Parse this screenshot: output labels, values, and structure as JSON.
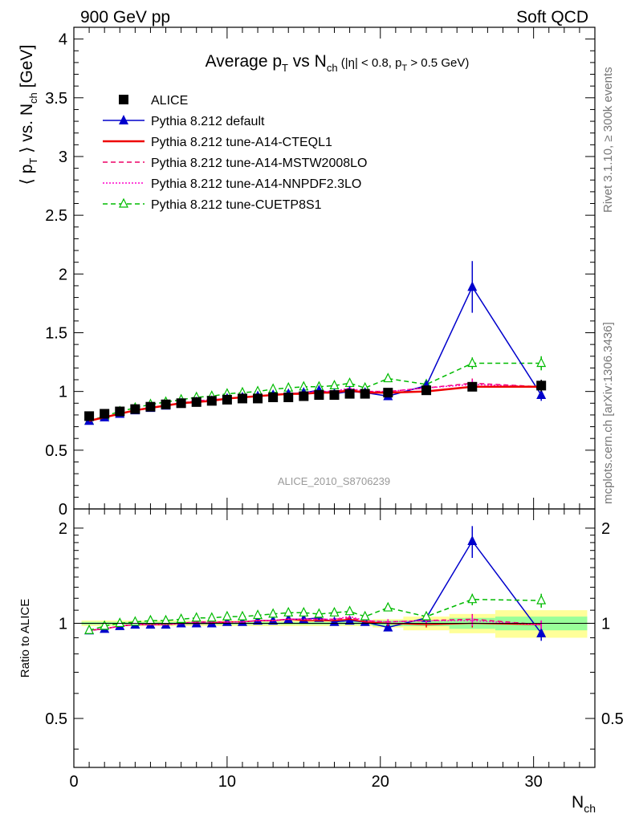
{
  "header": {
    "left": "900 GeV pp",
    "right": "Soft QCD",
    "side_top": "Rivet 3.1.10, ≥ 300k events",
    "side_bottom": "mcplots.cern.ch [arXiv:1306.3436]",
    "analysis_id": "ALICE_2010_S8706239"
  },
  "chart_data": [
    {
      "type": "line",
      "title": "Average p_T vs N_ch (|η| < 0.8, p_T > 0.5 GeV)",
      "title_parts": {
        "main": "Average p",
        "sub1": "T",
        "mid": " vs N",
        "sub2": "ch",
        "small": " (|η| < 0.8, p",
        "sub3": "T",
        "small_end": " > 0.5 GeV)"
      },
      "xlabel": "N_ch",
      "ylabel": "⟨ p_T ⟩ vs. N_ch [GeV]",
      "ylabel_parts": {
        "a": "⟨ p",
        "sub1": "T",
        "b": " ⟩ vs. N",
        "sub2": "ch",
        "c": " [GeV]"
      },
      "xlim": [
        0,
        34
      ],
      "ylim": [
        0,
        4.1
      ],
      "yticks": [
        "0",
        "0.5",
        "1",
        "1.5",
        "2",
        "2.5",
        "3",
        "3.5",
        "4"
      ],
      "xticks": [
        "0",
        "10",
        "20",
        "30"
      ],
      "legend_position": "top-left",
      "x": [
        1,
        2,
        3,
        4,
        5,
        6,
        7,
        8,
        9,
        10,
        11,
        12,
        13,
        14,
        15,
        16,
        17,
        18,
        19,
        20.5,
        23,
        26,
        30.5
      ],
      "series": [
        {
          "name": "ALICE",
          "color": "#000000",
          "marker": "square",
          "values": [
            0.79,
            0.81,
            0.83,
            0.85,
            0.87,
            0.89,
            0.9,
            0.91,
            0.92,
            0.93,
            0.94,
            0.94,
            0.95,
            0.95,
            0.96,
            0.97,
            0.97,
            0.98,
            0.98,
            0.99,
            1.01,
            1.04,
            1.05
          ],
          "errors": [
            0.01,
            0.01,
            0.01,
            0.01,
            0.01,
            0.01,
            0.01,
            0.01,
            0.01,
            0.01,
            0.01,
            0.01,
            0.01,
            0.01,
            0.01,
            0.01,
            0.01,
            0.01,
            0.01,
            0.02,
            0.02,
            0.03,
            0.05
          ]
        },
        {
          "name": "Pythia 8.212 default",
          "color": "#0000cc",
          "marker": "triangle-filled",
          "dash": "solid",
          "values": [
            0.75,
            0.78,
            0.81,
            0.84,
            0.86,
            0.88,
            0.9,
            0.91,
            0.92,
            0.94,
            0.95,
            0.96,
            0.97,
            0.98,
            0.99,
            1.01,
            0.98,
            1.0,
            0.99,
            0.96,
            1.05,
            1.89,
            0.97
          ],
          "errors": [
            0,
            0,
            0,
            0,
            0,
            0,
            0,
            0,
            0,
            0,
            0,
            0,
            0,
            0,
            0,
            0,
            0,
            0,
            0,
            0.02,
            0.03,
            0.22,
            0.05
          ]
        },
        {
          "name": "Pythia 8.212 tune-A14-CTEQL1",
          "color": "#ee0000",
          "marker": "none",
          "dash": "solid",
          "values": [
            0.75,
            0.78,
            0.81,
            0.84,
            0.86,
            0.88,
            0.9,
            0.91,
            0.92,
            0.94,
            0.95,
            0.96,
            0.97,
            0.98,
            0.98,
            0.99,
            0.99,
            1.01,
            0.99,
            0.99,
            1.0,
            1.04,
            1.04
          ],
          "errors": [
            0,
            0,
            0,
            0,
            0,
            0,
            0,
            0,
            0,
            0,
            0,
            0,
            0,
            0,
            0,
            0,
            0,
            0,
            0,
            0.02,
            0.02,
            0.03,
            0.03
          ]
        },
        {
          "name": "Pythia 8.212 tune-A14-MSTW2008LO",
          "color": "#ee0066",
          "marker": "none",
          "dash": "dashed",
          "values": [
            0.75,
            0.78,
            0.81,
            0.84,
            0.86,
            0.88,
            0.9,
            0.92,
            0.93,
            0.94,
            0.95,
            0.96,
            0.97,
            0.98,
            0.99,
            1.0,
            1.0,
            1.02,
            1.0,
            1.0,
            1.03,
            1.07,
            1.04
          ],
          "errors": [
            0,
            0,
            0,
            0,
            0,
            0,
            0,
            0,
            0,
            0,
            0,
            0,
            0,
            0,
            0,
            0,
            0,
            0,
            0,
            0.02,
            0.02,
            0.04,
            0.03
          ]
        },
        {
          "name": "Pythia 8.212 tune-A14-NNPDF2.3LO",
          "color": "#ff00cc",
          "marker": "none",
          "dash": "dotted",
          "values": [
            0.75,
            0.78,
            0.81,
            0.84,
            0.86,
            0.88,
            0.9,
            0.92,
            0.93,
            0.94,
            0.95,
            0.96,
            0.97,
            0.98,
            0.99,
            1.0,
            1.0,
            1.03,
            1.0,
            1.0,
            1.03,
            1.06,
            1.04
          ],
          "errors": [
            0,
            0,
            0,
            0,
            0,
            0,
            0,
            0,
            0,
            0,
            0,
            0,
            0,
            0,
            0,
            0,
            0,
            0,
            0,
            0.02,
            0.02,
            0.04,
            0.03
          ]
        },
        {
          "name": "Pythia 8.212 tune-CUETP8S1",
          "color": "#00bb00",
          "marker": "triangle-open",
          "dash": "dashed",
          "values": [
            0.75,
            0.79,
            0.83,
            0.86,
            0.89,
            0.91,
            0.93,
            0.95,
            0.96,
            0.98,
            0.99,
            1.0,
            1.02,
            1.03,
            1.04,
            1.04,
            1.05,
            1.07,
            1.03,
            1.11,
            1.06,
            1.24,
            1.24
          ],
          "errors": [
            0,
            0,
            0,
            0,
            0,
            0,
            0,
            0,
            0,
            0,
            0,
            0,
            0,
            0,
            0,
            0,
            0,
            0,
            0,
            0.02,
            0.03,
            0.05,
            0.06
          ]
        }
      ]
    },
    {
      "type": "line",
      "title": "",
      "xlabel": "N_ch",
      "ylabel": "Ratio to ALICE",
      "ylim": [
        0.35,
        2.3
      ],
      "yticks": [
        "0.5",
        "1",
        "2"
      ],
      "xticks": [
        "0",
        "10",
        "20",
        "30"
      ],
      "reference_band": {
        "x_edges": [
          0.5,
          1.5,
          2.5,
          3.5,
          4.5,
          5.5,
          6.5,
          7.5,
          8.5,
          9.5,
          10.5,
          11.5,
          12.5,
          13.5,
          14.5,
          15.5,
          16.5,
          17.5,
          18.5,
          19.5,
          21.5,
          24.5,
          27.5,
          33.5
        ],
        "stat_half_width": [
          0.01,
          0.01,
          0.01,
          0.01,
          0.01,
          0.01,
          0.01,
          0.01,
          0.01,
          0.01,
          0.01,
          0.01,
          0.01,
          0.01,
          0.01,
          0.01,
          0.01,
          0.01,
          0.01,
          0.02,
          0.02,
          0.04,
          0.05
        ],
        "total_half_width": [
          0.02,
          0.02,
          0.02,
          0.02,
          0.02,
          0.02,
          0.02,
          0.02,
          0.02,
          0.02,
          0.02,
          0.02,
          0.02,
          0.02,
          0.02,
          0.02,
          0.02,
          0.02,
          0.02,
          0.03,
          0.05,
          0.07,
          0.1
        ]
      },
      "series_ratios": [
        {
          "name": "Pythia 8.212 default",
          "values": [
            0.95,
            0.96,
            0.98,
            0.99,
            0.99,
            0.99,
            1.0,
            1.0,
            1.0,
            1.01,
            1.01,
            1.02,
            1.02,
            1.03,
            1.03,
            1.04,
            1.01,
            1.02,
            1.01,
            0.97,
            1.04,
            1.82,
            0.93
          ],
          "errors": [
            0,
            0,
            0,
            0,
            0,
            0,
            0,
            0,
            0,
            0,
            0,
            0,
            0,
            0,
            0,
            0,
            0,
            0,
            0,
            0.02,
            0.03,
            0.21,
            0.05
          ]
        },
        {
          "name": "Pythia 8.212 tune-A14-CTEQL1",
          "values": [
            0.95,
            0.96,
            0.98,
            0.99,
            0.99,
            0.99,
            1.0,
            1.0,
            1.0,
            1.01,
            1.01,
            1.02,
            1.02,
            1.03,
            1.02,
            1.02,
            1.02,
            1.03,
            1.01,
            1.0,
            0.99,
            1.0,
            0.99
          ],
          "errors": [
            0,
            0,
            0,
            0,
            0,
            0,
            0,
            0,
            0,
            0,
            0,
            0,
            0,
            0,
            0,
            0,
            0,
            0,
            0,
            0.02,
            0.02,
            0.03,
            0.03
          ]
        },
        {
          "name": "Pythia 8.212 tune-A14-MSTW2008LO",
          "values": [
            0.95,
            0.96,
            0.98,
            0.99,
            0.99,
            0.99,
            1.0,
            1.01,
            1.01,
            1.01,
            1.01,
            1.02,
            1.02,
            1.03,
            1.03,
            1.03,
            1.03,
            1.04,
            1.02,
            1.01,
            1.02,
            1.03,
            0.99
          ],
          "errors": [
            0,
            0,
            0,
            0,
            0,
            0,
            0,
            0,
            0,
            0,
            0,
            0,
            0,
            0,
            0,
            0,
            0,
            0,
            0,
            0.02,
            0.02,
            0.04,
            0.03
          ]
        },
        {
          "name": "Pythia 8.212 tune-A14-NNPDF2.3LO",
          "values": [
            0.95,
            0.96,
            0.98,
            0.99,
            0.99,
            0.99,
            1.0,
            1.01,
            1.01,
            1.01,
            1.01,
            1.02,
            1.02,
            1.03,
            1.03,
            1.03,
            1.03,
            1.05,
            1.02,
            1.01,
            1.02,
            1.02,
            0.99
          ],
          "errors": [
            0,
            0,
            0,
            0,
            0,
            0,
            0,
            0,
            0,
            0,
            0,
            0,
            0,
            0,
            0,
            0,
            0,
            0,
            0,
            0.02,
            0.02,
            0.04,
            0.03
          ]
        },
        {
          "name": "Pythia 8.212 tune-CUETP8S1",
          "values": [
            0.95,
            0.98,
            1.0,
            1.01,
            1.02,
            1.02,
            1.03,
            1.04,
            1.04,
            1.05,
            1.05,
            1.06,
            1.07,
            1.08,
            1.08,
            1.07,
            1.08,
            1.09,
            1.05,
            1.12,
            1.05,
            1.19,
            1.18
          ],
          "errors": [
            0,
            0,
            0,
            0,
            0,
            0,
            0,
            0,
            0,
            0,
            0,
            0,
            0,
            0,
            0,
            0,
            0,
            0,
            0,
            0.02,
            0.03,
            0.05,
            0.06
          ]
        }
      ]
    }
  ]
}
